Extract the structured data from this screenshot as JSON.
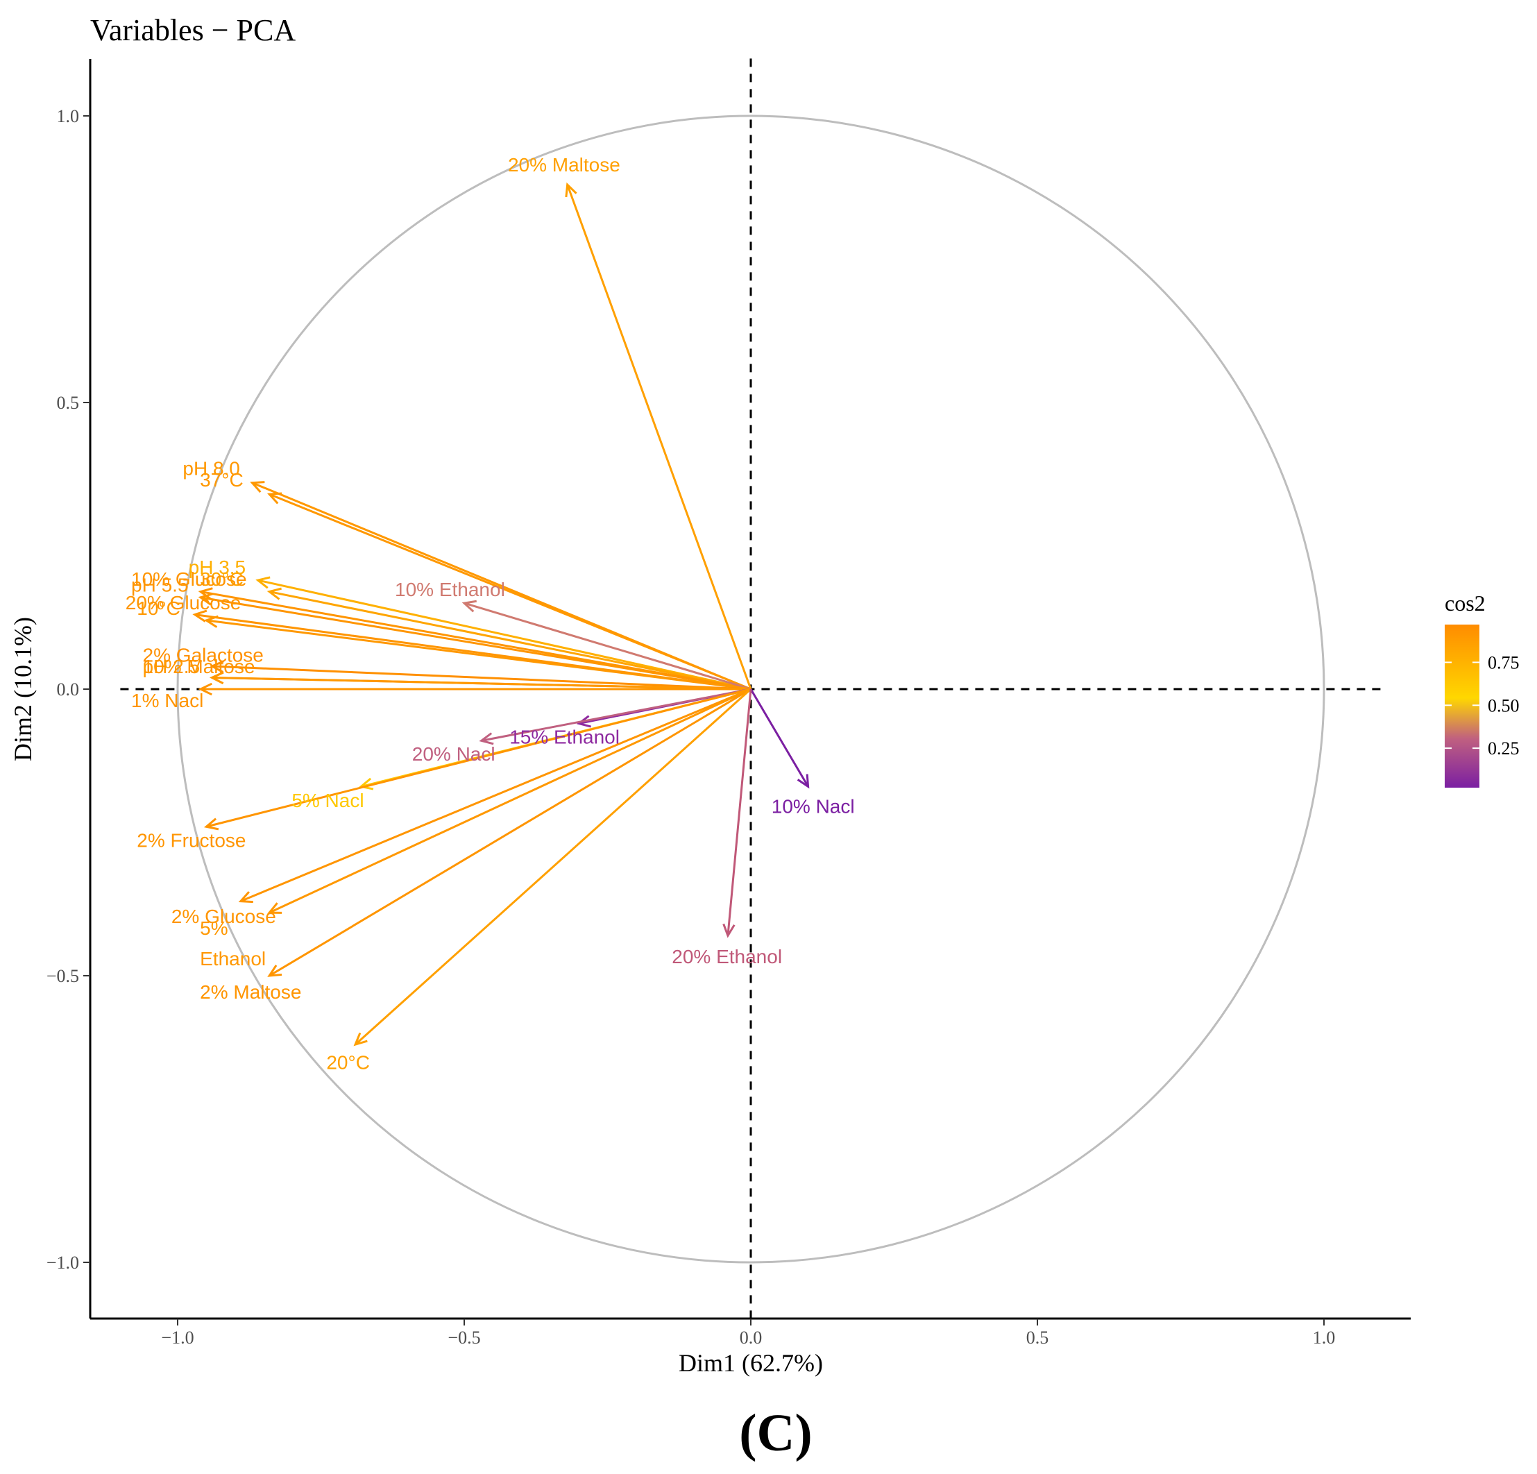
{
  "chart_data": {
    "type": "scatter",
    "subtype": "pca-variable-correlation-circle",
    "title": "Variables − PCA",
    "xlabel": "Dim1 (62.7%)",
    "ylabel": "Dim2 (10.1%)",
    "xlim": [
      -1.1,
      1.1
    ],
    "ylim": [
      -1.1,
      1.1
    ],
    "xticks": [
      -1.0,
      -0.5,
      0.0,
      0.5,
      1.0
    ],
    "yticks": [
      -1.0,
      -0.5,
      0.0,
      0.5,
      1.0
    ],
    "xtick_labels": [
      "−1.0",
      "−0.5",
      "0.0",
      "0.5",
      "1.0"
    ],
    "ytick_labels": [
      "−1.0",
      "−0.5",
      "0.0",
      "0.5",
      "1.0"
    ],
    "grid": false,
    "unit_circle": true,
    "reference_lines": "dashed at x=0 and y=0",
    "color_variable": "cos2",
    "colorbar": {
      "title": "cos2",
      "ticks": [
        0.25,
        0.5,
        0.75
      ],
      "tick_labels": [
        "0.25",
        "0.50",
        "0.75"
      ],
      "range": [
        0.02,
        0.97
      ],
      "colors": [
        "#7b1fa2",
        "#c06080",
        "#ffd700",
        "#ff8c00"
      ],
      "placement": "right"
    },
    "variables": [
      {
        "label": "20% Maltose",
        "x": -0.32,
        "y": 0.88,
        "color": "#ffa000"
      },
      {
        "label": "pH 8.0",
        "x": -0.87,
        "y": 0.36,
        "color": "#ff9800"
      },
      {
        "label": "37°C",
        "x": -0.84,
        "y": 0.34,
        "color": "#ff9800"
      },
      {
        "label": "pH 3.5",
        "x": -0.86,
        "y": 0.19,
        "color": "#ffb000"
      },
      {
        "label": "30°C",
        "x": -0.84,
        "y": 0.17,
        "color": "#ffa500"
      },
      {
        "label": "10% Glucose",
        "x": -0.96,
        "y": 0.17,
        "color": "#ff9500"
      },
      {
        "label": "pH 5.5",
        "x": -0.96,
        "y": 0.16,
        "color": "#ff9500"
      },
      {
        "label": "10% Ethanol",
        "x": -0.5,
        "y": 0.15,
        "color": "#d07a70"
      },
      {
        "label": "20% Glucose",
        "x": -0.97,
        "y": 0.13,
        "color": "#ff9500"
      },
      {
        "label": "10°C",
        "x": -0.95,
        "y": 0.12,
        "color": "#ff9800"
      },
      {
        "label": "2% Galactose",
        "x": -0.94,
        "y": 0.04,
        "color": "#ff9000"
      },
      {
        "label": "10% Maltose",
        "x": -0.94,
        "y": 0.02,
        "color": "#ff9500"
      },
      {
        "label": "1% Nacl",
        "x": -0.96,
        "y": 0.0,
        "color": "#ff9500"
      },
      {
        "label": "pH 2.5",
        "x": -0.94,
        "y": 0.02,
        "color": "#ff9800"
      },
      {
        "label": "15% Ethanol",
        "x": -0.3,
        "y": -0.06,
        "color": "#8e2aa0"
      },
      {
        "label": "20% Nacl",
        "x": -0.47,
        "y": -0.09,
        "color": "#c06080"
      },
      {
        "label": "5% Nacl",
        "x": -0.68,
        "y": -0.17,
        "color": "#ffc800"
      },
      {
        "label": "2% Fructose",
        "x": -0.95,
        "y": -0.24,
        "color": "#ff9500"
      },
      {
        "label": "2% Glucose",
        "x": -0.89,
        "y": -0.37,
        "color": "#ff9500"
      },
      {
        "label": "5%\nEthanol",
        "x": -0.84,
        "y": -0.39,
        "color": "#ff9800"
      },
      {
        "label": "2% Maltose",
        "x": -0.84,
        "y": -0.5,
        "color": "#ff9500"
      },
      {
        "label": "20°C",
        "x": -0.69,
        "y": -0.62,
        "color": "#ffa000"
      },
      {
        "label": "10% Nacl",
        "x": 0.1,
        "y": -0.17,
        "color": "#7b1fa2"
      },
      {
        "label": "20% Ethanol",
        "x": -0.04,
        "y": -0.43,
        "color": "#c05878"
      }
    ]
  },
  "panel_label": "(C)"
}
